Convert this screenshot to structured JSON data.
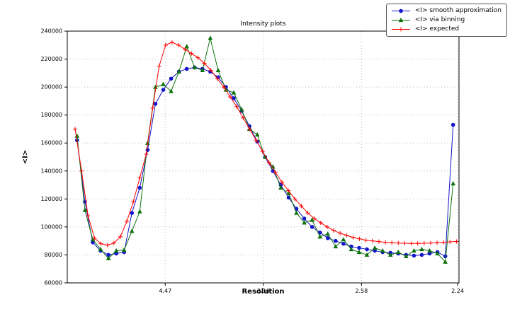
{
  "figure": {
    "background": "#ffffff",
    "grid_color": "#bbbbbb",
    "axis_color": "#000000"
  },
  "chart_data": {
    "type": "line",
    "title": "Intensity plots",
    "xlabel": "Resolution",
    "ylabel": "<I>",
    "grid": true,
    "legend_position": "upper-right-outside",
    "x_axis": {
      "range": [
        0,
        0.2
      ],
      "ticks": [
        0.05,
        0.1001,
        0.1502,
        0.1993
      ],
      "tick_labels": [
        "4.47",
        "3.16",
        "2.58",
        "2.24"
      ]
    },
    "y_axis": {
      "range": [
        60000,
        240000
      ],
      "ticks": [
        60000,
        80000,
        100000,
        120000,
        140000,
        160000,
        180000,
        200000,
        220000,
        240000
      ],
      "tick_labels": [
        "60000",
        "80000",
        "100000",
        "120000",
        "140000",
        "160000",
        "180000",
        "200000",
        "220000",
        "240000"
      ]
    },
    "series": [
      {
        "name": "<I> smooth approximation",
        "color": "#1414cc",
        "marker": "circle",
        "x": [
          0.005,
          0.009,
          0.013,
          0.017,
          0.021,
          0.025,
          0.029,
          0.033,
          0.037,
          0.041,
          0.045,
          0.049,
          0.053,
          0.057,
          0.061,
          0.065,
          0.069,
          0.073,
          0.077,
          0.081,
          0.085,
          0.089,
          0.093,
          0.097,
          0.101,
          0.105,
          0.109,
          0.113,
          0.117,
          0.121,
          0.125,
          0.129,
          0.133,
          0.137,
          0.141,
          0.145,
          0.149,
          0.153,
          0.157,
          0.161,
          0.165,
          0.169,
          0.173,
          0.177,
          0.181,
          0.185,
          0.189,
          0.193,
          0.197
        ],
        "y": [
          162000,
          118000,
          89000,
          83000,
          80000,
          81000,
          82000,
          110000,
          128000,
          155000,
          188000,
          198000,
          206000,
          211000,
          213000,
          214000,
          213000,
          211000,
          207000,
          200000,
          192000,
          183000,
          172000,
          161000,
          150000,
          140000,
          130000,
          121000,
          113000,
          106000,
          100000,
          96000,
          92000,
          90000,
          88000,
          86000,
          85000,
          84000,
          83000,
          82000,
          81500,
          81000,
          80000,
          79500,
          80000,
          81000,
          82000,
          79000,
          173000
        ]
      },
      {
        "name": "<I> via binning",
        "color": "#0e720e",
        "marker": "triangle",
        "x": [
          0.005,
          0.009,
          0.013,
          0.017,
          0.021,
          0.025,
          0.029,
          0.033,
          0.037,
          0.041,
          0.045,
          0.049,
          0.053,
          0.057,
          0.061,
          0.065,
          0.069,
          0.073,
          0.077,
          0.081,
          0.085,
          0.089,
          0.093,
          0.097,
          0.101,
          0.105,
          0.109,
          0.113,
          0.117,
          0.121,
          0.125,
          0.129,
          0.133,
          0.137,
          0.141,
          0.145,
          0.149,
          0.153,
          0.157,
          0.161,
          0.165,
          0.169,
          0.173,
          0.177,
          0.181,
          0.185,
          0.189,
          0.193,
          0.197
        ],
        "y": [
          165000,
          112000,
          91000,
          84000,
          77500,
          83000,
          83500,
          97000,
          111000,
          160000,
          200000,
          202000,
          197000,
          211000,
          229000,
          214000,
          212000,
          235000,
          212000,
          198000,
          196000,
          184000,
          170000,
          166000,
          150000,
          143000,
          128000,
          124000,
          110000,
          103000,
          105000,
          93000,
          95000,
          86000,
          91000,
          84000,
          82000,
          80000,
          85000,
          83000,
          80000,
          82000,
          79000,
          83000,
          84000,
          83000,
          81000,
          75000,
          131000
        ]
      },
      {
        "name": "<I> expected",
        "color": "#ff0000",
        "marker": "plus",
        "x": [
          0.004,
          0.0073,
          0.0106,
          0.0139,
          0.0172,
          0.0205,
          0.0238,
          0.0271,
          0.0304,
          0.0337,
          0.037,
          0.0403,
          0.0436,
          0.0469,
          0.0502,
          0.0535,
          0.0568,
          0.0601,
          0.0634,
          0.0667,
          0.07,
          0.0733,
          0.0766,
          0.0799,
          0.0832,
          0.0865,
          0.0898,
          0.0931,
          0.0964,
          0.0997,
          0.103,
          0.1063,
          0.1096,
          0.1129,
          0.1162,
          0.1195,
          0.1228,
          0.1261,
          0.1294,
          0.1327,
          0.136,
          0.1393,
          0.1426,
          0.1459,
          0.1492,
          0.1525,
          0.1558,
          0.1591,
          0.1624,
          0.1657,
          0.169,
          0.1723,
          0.1756,
          0.1789,
          0.1822,
          0.1855,
          0.1888,
          0.1921,
          0.1954,
          0.1987
        ],
        "y": [
          170000,
          140000,
          108000,
          92000,
          88000,
          87000,
          88500,
          93000,
          104000,
          118000,
          135000,
          152000,
          185000,
          215000,
          230000,
          232000,
          230000,
          227000,
          224000,
          221000,
          217000,
          212000,
          206000,
          200000,
          193000,
          186000,
          178000,
          170000,
          162000,
          154000,
          146000,
          139000,
          132000,
          126000,
          120000,
          115000,
          110000,
          106000,
          103000,
          100000,
          97500,
          95500,
          94000,
          92500,
          91500,
          90500,
          90000,
          89500,
          89000,
          88700,
          88500,
          88300,
          88200,
          88200,
          88300,
          88500,
          88700,
          89000,
          89300,
          89600
        ]
      }
    ]
  }
}
